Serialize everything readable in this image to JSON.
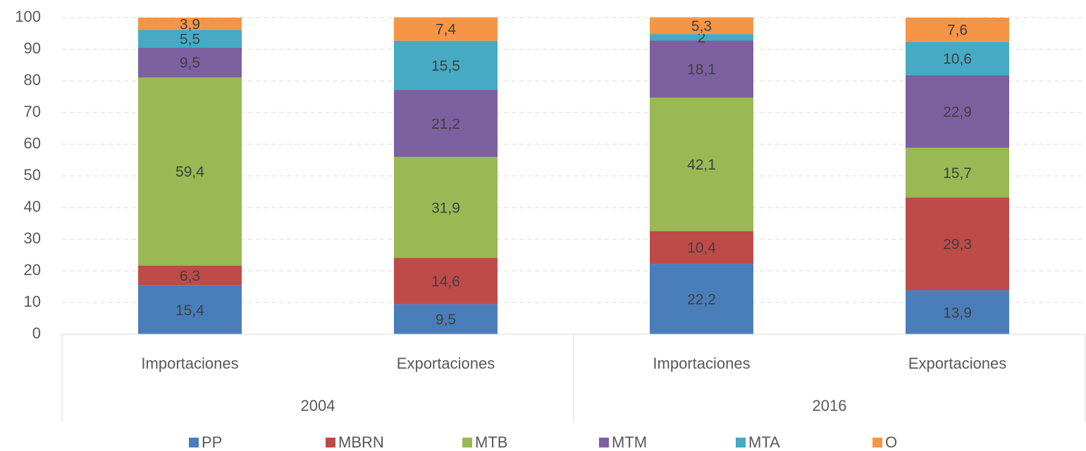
{
  "chart_data": {
    "type": "stacked_bar",
    "categories": [
      "Importaciones",
      "Exportaciones",
      "Importaciones",
      "Exportaciones"
    ],
    "groups": [
      "2004",
      "2016"
    ],
    "series": [
      {
        "name": "PP",
        "color": "#4a7ebb",
        "values": [
          15.4,
          9.5,
          22.2,
          13.9
        ],
        "value_labels": [
          "15,4",
          "9,5",
          "22,2",
          "13,9"
        ]
      },
      {
        "name": "MBRN",
        "color": "#be4b48",
        "values": [
          6.3,
          14.6,
          10.4,
          29.3
        ],
        "value_labels": [
          "6,3",
          "14,6",
          "10,4",
          "29,3"
        ]
      },
      {
        "name": "MTB",
        "color": "#98b954",
        "values": [
          59.4,
          31.9,
          42.1,
          15.7
        ],
        "value_labels": [
          "59,4",
          "31,9",
          "42,1",
          "15,7"
        ]
      },
      {
        "name": "MTM",
        "color": "#7d60a0",
        "values": [
          9.5,
          21.2,
          18.1,
          22.9
        ],
        "value_labels": [
          "9,5",
          "21,2",
          "18,1",
          "22,9"
        ]
      },
      {
        "name": "MTA",
        "color": "#46aac5",
        "values": [
          5.5,
          15.5,
          2,
          10.6
        ],
        "value_labels": [
          "5,5",
          "15,5",
          "2",
          "10,6"
        ]
      },
      {
        "name": "O",
        "color": "#f69546",
        "values": [
          3.9,
          7.4,
          5.3,
          7.6
        ],
        "value_labels": [
          "3,9",
          "7,4",
          "5,3",
          "7,6"
        ]
      }
    ],
    "ylim": [
      0,
      100
    ],
    "yticks": [
      0,
      10,
      20,
      30,
      40,
      50,
      60,
      70,
      80,
      90,
      100
    ],
    "grid": true,
    "legend": "bottom"
  }
}
